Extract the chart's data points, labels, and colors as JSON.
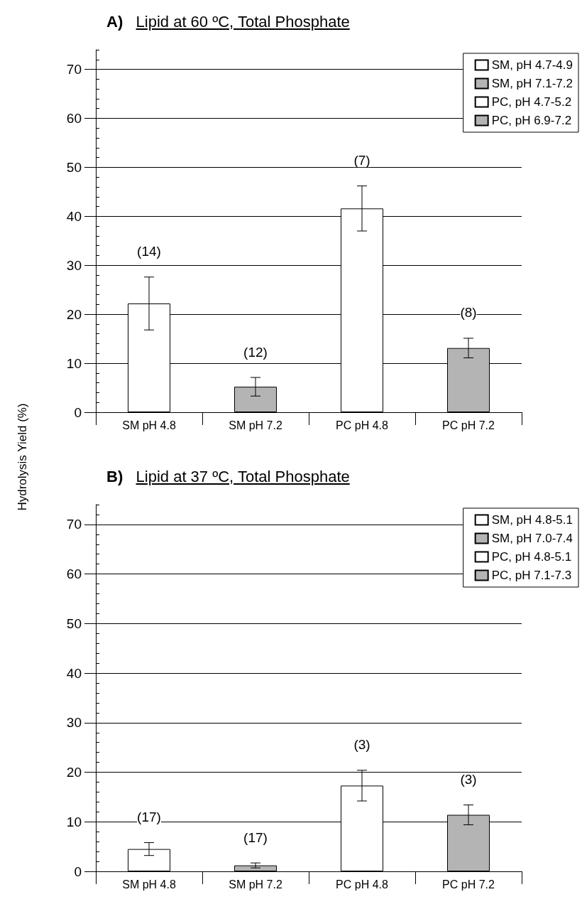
{
  "chart_data": [
    {
      "type": "bar",
      "title": "A)  Lipid at 60 ºC, Total Phosphate",
      "ylabel": "Hydrolysis Yield (%)",
      "categories": [
        "SM pH 4.8",
        "SM pH 7.2",
        "PC pH 4.8",
        "PC pH 7.2"
      ],
      "series": [
        {
          "name": "SM, pH 4.7-4.9",
          "color": "#ffffff",
          "values": [
            22.2,
            null,
            null,
            null
          ],
          "errors": [
            5.4,
            null,
            null,
            null
          ]
        },
        {
          "name": "SM, pH 7.1-7.2",
          "color": "#b4b4b4",
          "values": [
            null,
            5.2,
            null,
            null
          ],
          "errors": [
            null,
            1.9,
            null,
            null
          ]
        },
        {
          "name": "PC, pH 4.7-5.2",
          "color": "#ffffff",
          "values": [
            null,
            null,
            41.6,
            null
          ],
          "errors": [
            null,
            null,
            4.6,
            null
          ]
        },
        {
          "name": "PC, pH 6.9-7.2",
          "color": "#b4b4b4",
          "values": [
            null,
            null,
            null,
            13.1
          ],
          "errors": [
            null,
            null,
            null,
            2.0
          ]
        }
      ],
      "annotations": [
        "(14)",
        "(12)",
        "(7)",
        "(8)"
      ],
      "ylim": [
        0,
        74
      ],
      "yticks": [
        0,
        10,
        20,
        30,
        40,
        50,
        60,
        70
      ],
      "grid": "y",
      "legend": "top right"
    },
    {
      "type": "bar",
      "title": "B)  Lipid at 37 ºC, Total Phosphate",
      "categories": [
        "SM pH 4.8",
        "SM pH 7.2",
        "PC pH 4.8",
        "PC pH 7.2"
      ],
      "series": [
        {
          "name": "SM, pH 4.8-5.1",
          "color": "#ffffff",
          "values": [
            4.5,
            null,
            null,
            null
          ],
          "errors": [
            1.3,
            null,
            null,
            null
          ]
        },
        {
          "name": "SM, pH 7.0-7.4",
          "color": "#b4b4b4",
          "values": [
            null,
            1.2,
            null,
            null
          ],
          "errors": [
            null,
            0.5,
            null,
            null
          ]
        },
        {
          "name": "PC, pH 4.8-5.1",
          "color": "#ffffff",
          "values": [
            null,
            null,
            17.3,
            null
          ],
          "errors": [
            null,
            null,
            3.1,
            null
          ]
        },
        {
          "name": "PC, pH 7.1-7.3",
          "color": "#b4b4b4",
          "values": [
            null,
            null,
            null,
            11.4
          ],
          "errors": [
            null,
            null,
            null,
            2.0
          ]
        }
      ],
      "annotations": [
        "(17)",
        "(17)",
        "(3)",
        "(3)"
      ],
      "ylim": [
        0,
        74
      ],
      "yticks": [
        0,
        10,
        20,
        30,
        40,
        50,
        60,
        70
      ],
      "grid": "y",
      "legend": "top right"
    }
  ]
}
